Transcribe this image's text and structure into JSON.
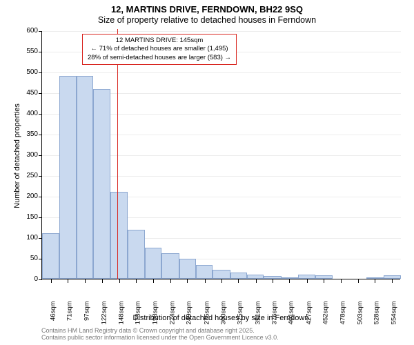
{
  "title": "12, MARTINS DRIVE, FERNDOWN, BH22 9SQ",
  "subtitle": "Size of property relative to detached houses in Ferndown",
  "ylabel": "Number of detached properties",
  "xlabel": "Distribution of detached houses by size in Ferndown",
  "chart": {
    "type": "histogram",
    "xlim": [
      33,
      567
    ],
    "ylim": [
      0,
      600
    ],
    "ytick_step": 50,
    "yticks": [
      0,
      50,
      100,
      150,
      200,
      250,
      300,
      350,
      400,
      450,
      500,
      550,
      600
    ],
    "xticks": [
      46,
      71,
      97,
      122,
      148,
      173,
      198,
      224,
      249,
      275,
      300,
      325,
      351,
      376,
      401,
      427,
      452,
      478,
      503,
      528,
      554
    ],
    "xtick_suffix": "sqm",
    "bar_fill": "#c9d9ef",
    "bar_stroke": "#8ca7d0",
    "grid_color": "#ececec",
    "background_color": "#ffffff",
    "marker_x": 145,
    "marker_color": "#d8241e",
    "bars": [
      {
        "x0": 33,
        "x1": 59,
        "count": 110
      },
      {
        "x0": 59,
        "x1": 84,
        "count": 490
      },
      {
        "x0": 84,
        "x1": 109,
        "count": 490
      },
      {
        "x0": 109,
        "x1": 135,
        "count": 458
      },
      {
        "x0": 135,
        "x1": 160,
        "count": 210
      },
      {
        "x0": 160,
        "x1": 186,
        "count": 118
      },
      {
        "x0": 186,
        "x1": 211,
        "count": 75
      },
      {
        "x0": 211,
        "x1": 237,
        "count": 62
      },
      {
        "x0": 237,
        "x1": 262,
        "count": 48
      },
      {
        "x0": 262,
        "x1": 287,
        "count": 34
      },
      {
        "x0": 287,
        "x1": 313,
        "count": 22
      },
      {
        "x0": 313,
        "x1": 338,
        "count": 15
      },
      {
        "x0": 338,
        "x1": 363,
        "count": 10
      },
      {
        "x0": 363,
        "x1": 389,
        "count": 6
      },
      {
        "x0": 389,
        "x1": 414,
        "count": 4
      },
      {
        "x0": 414,
        "x1": 440,
        "count": 10
      },
      {
        "x0": 440,
        "x1": 465,
        "count": 8
      },
      {
        "x0": 465,
        "x1": 490,
        "count": 0
      },
      {
        "x0": 490,
        "x1": 516,
        "count": 0
      },
      {
        "x0": 516,
        "x1": 541,
        "count": 4
      },
      {
        "x0": 541,
        "x1": 567,
        "count": 8
      }
    ],
    "annotation": {
      "line1": "12 MARTINS DRIVE: 145sqm",
      "line2": "← 71% of detached houses are smaller (1,495)",
      "line3": "28% of semi-detached houses are larger (583) →",
      "border_color": "#d8241e"
    }
  },
  "attribution": {
    "line1": "Contains HM Land Registry data © Crown copyright and database right 2025.",
    "line2": "Contains public sector information licensed under the Open Government Licence v3.0.",
    "color": "#7a7a7a"
  },
  "fontsize": {
    "title": 13,
    "subtitle": 12.5,
    "axis_label": 11,
    "tick": 10,
    "xtick": 9.5,
    "annotation": 9.5,
    "attribution": 9
  }
}
